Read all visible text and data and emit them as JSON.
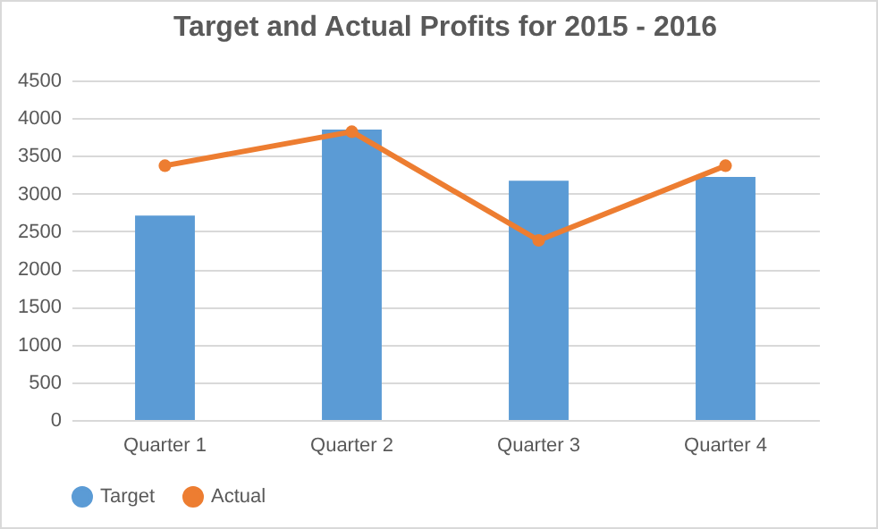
{
  "chart_data": {
    "type": "bar",
    "title": "Target and Actual Profits for 2015 - 2016",
    "categories": [
      "Quarter 1",
      "Quarter 2",
      "Quarter 3",
      "Quarter 4"
    ],
    "series": [
      {
        "name": "Target",
        "color": "#5b9bd5",
        "type": "bar",
        "values": [
          2710,
          3850,
          3170,
          3220
        ]
      },
      {
        "name": "Actual",
        "color": "#ed7d31",
        "type": "line",
        "values": [
          3370,
          3820,
          2380,
          3370
        ]
      }
    ],
    "ylim": [
      0,
      4500
    ],
    "yticks": [
      0,
      500,
      1000,
      1500,
      2000,
      2500,
      3000,
      3500,
      4000,
      4500
    ],
    "grid": "y",
    "legend": "bottom",
    "marker": "circle"
  }
}
